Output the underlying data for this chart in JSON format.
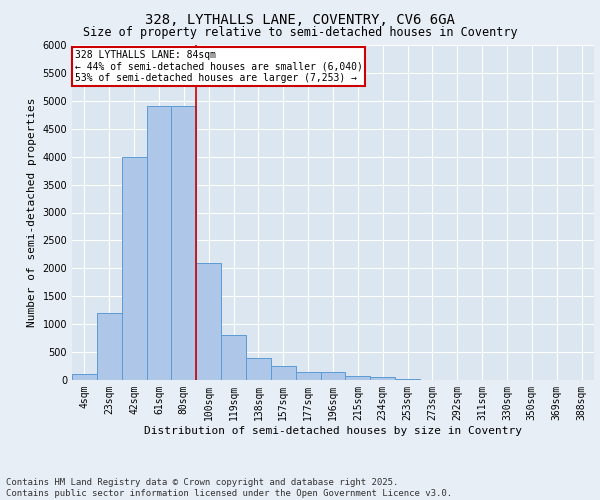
{
  "title_line1": "328, LYTHALLS LANE, COVENTRY, CV6 6GA",
  "title_line2": "Size of property relative to semi-detached houses in Coventry",
  "xlabel": "Distribution of semi-detached houses by size in Coventry",
  "ylabel": "Number of semi-detached properties",
  "categories": [
    "4sqm",
    "23sqm",
    "42sqm",
    "61sqm",
    "80sqm",
    "100sqm",
    "119sqm",
    "138sqm",
    "157sqm",
    "177sqm",
    "196sqm",
    "215sqm",
    "234sqm",
    "253sqm",
    "273sqm",
    "292sqm",
    "311sqm",
    "330sqm",
    "350sqm",
    "369sqm",
    "388sqm"
  ],
  "values": [
    100,
    1200,
    4000,
    4900,
    4900,
    2100,
    800,
    400,
    250,
    150,
    150,
    80,
    50,
    20,
    5,
    2,
    1,
    1,
    0,
    0,
    0
  ],
  "bar_color": "#aec6e8",
  "bar_edge_color": "#5b9bd5",
  "property_label": "328 LYTHALLS LANE: 84sqm",
  "pct_smaller": 44,
  "count_smaller": 6040,
  "pct_larger": 53,
  "count_larger": 7253,
  "annotation_box_color": "#ffffff",
  "annotation_box_edge_color": "#cc0000",
  "vline_color": "#cc0000",
  "vline_x": 4.5,
  "ylim": [
    0,
    6000
  ],
  "yticks": [
    0,
    500,
    1000,
    1500,
    2000,
    2500,
    3000,
    3500,
    4000,
    4500,
    5000,
    5500,
    6000
  ],
  "bg_color": "#e8eef5",
  "plot_bg_color": "#dce6f0",
  "grid_color": "#ffffff",
  "footer": "Contains HM Land Registry data © Crown copyright and database right 2025.\nContains public sector information licensed under the Open Government Licence v3.0.",
  "title_fontsize": 10,
  "subtitle_fontsize": 8.5,
  "axis_label_fontsize": 8,
  "tick_fontsize": 7,
  "annotation_fontsize": 7,
  "footer_fontsize": 6.5
}
